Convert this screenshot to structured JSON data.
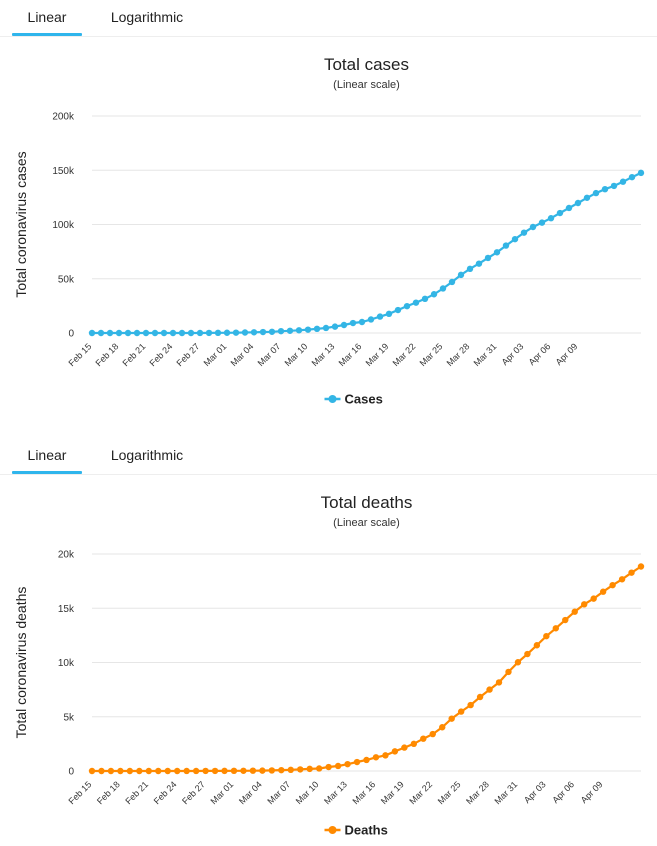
{
  "tabs": {
    "linear": "Linear",
    "log": "Logarithmic"
  },
  "chart_data": [
    {
      "type": "line",
      "title": "Total cases",
      "subtitle": "(Linear scale)",
      "ylabel": "Total coronavirus cases",
      "xlabel": "",
      "ylim": [
        0,
        200000
      ],
      "y_ticks": [
        0,
        50000,
        100000,
        150000,
        200000
      ],
      "y_tick_labels": [
        "0",
        "50k",
        "100k",
        "150k",
        "200k"
      ],
      "x_tick_labels": [
        "Feb 15",
        "Feb 18",
        "Feb 21",
        "Feb 24",
        "Feb 27",
        "Mar 01",
        "Mar 04",
        "Mar 07",
        "Mar 10",
        "Mar 13",
        "Mar 16",
        "Mar 19",
        "Mar 22",
        "Mar 25",
        "Mar 28",
        "Mar 31",
        "Apr 03",
        "Apr 06",
        "Apr 09"
      ],
      "x_start": "Feb 15",
      "legend_position": "bottom-center",
      "grid": true,
      "series": [
        {
          "name": "Cases",
          "color": "#33b5e5",
          "values": [
            3,
            3,
            3,
            3,
            3,
            3,
            3,
            3,
            3,
            3,
            3,
            4,
            17,
            79,
            155,
            230,
            320,
            455,
            655,
            888,
            1128,
            1694,
            2036,
            2502,
            3089,
            3858,
            4636,
            5883,
            7375,
            9172,
            10149,
            12462,
            15113,
            17660,
            21157,
            24747,
            27980,
            31506,
            35713,
            41035,
            47021,
            53578,
            59138,
            63927,
            69176,
            74386,
            80589,
            86498,
            92472,
            97689,
            101739,
            105792,
            110574,
            115242,
            119827,
            124632,
            128948,
            132547,
            135586,
            139422,
            143626,
            147577
          ]
        }
      ]
    },
    {
      "type": "line",
      "title": "Total deaths",
      "subtitle": "(Linear scale)",
      "ylabel": "Total coronavirus deaths",
      "xlabel": "",
      "ylim": [
        0,
        20000
      ],
      "y_ticks": [
        0,
        5000,
        10000,
        15000,
        20000
      ],
      "y_tick_labels": [
        "0",
        "5k",
        "10k",
        "15k",
        "20k"
      ],
      "x_tick_labels": [
        "Feb 15",
        "Feb 18",
        "Feb 21",
        "Feb 24",
        "Feb 27",
        "Mar 01",
        "Mar 04",
        "Mar 07",
        "Mar 10",
        "Mar 13",
        "Mar 16",
        "Mar 19",
        "Mar 22",
        "Mar 25",
        "Mar 28",
        "Mar 31",
        "Apr 03",
        "Apr 06",
        "Apr 09"
      ],
      "x_start": "Feb 15",
      "legend_position": "bottom-center",
      "grid": true,
      "series": [
        {
          "name": "Deaths",
          "color": "#ff8a00",
          "values": [
            0,
            0,
            0,
            0,
            0,
            0,
            0,
            0,
            0,
            1,
            2,
            3,
            7,
            10,
            12,
            17,
            21,
            29,
            34,
            52,
            79,
            107,
            148,
            197,
            233,
            366,
            463,
            631,
            827,
            1016,
            1266,
            1441,
            1809,
            2158,
            2503,
            2978,
            3405,
            4032,
            4825,
            5476,
            6077,
            6820,
            7503,
            8165,
            9134,
            10023,
            10779,
            11591,
            12428,
            13155,
            13915,
            14681,
            15362,
            15887,
            16523,
            17127,
            17669,
            18279,
            18849
          ]
        }
      ]
    }
  ]
}
